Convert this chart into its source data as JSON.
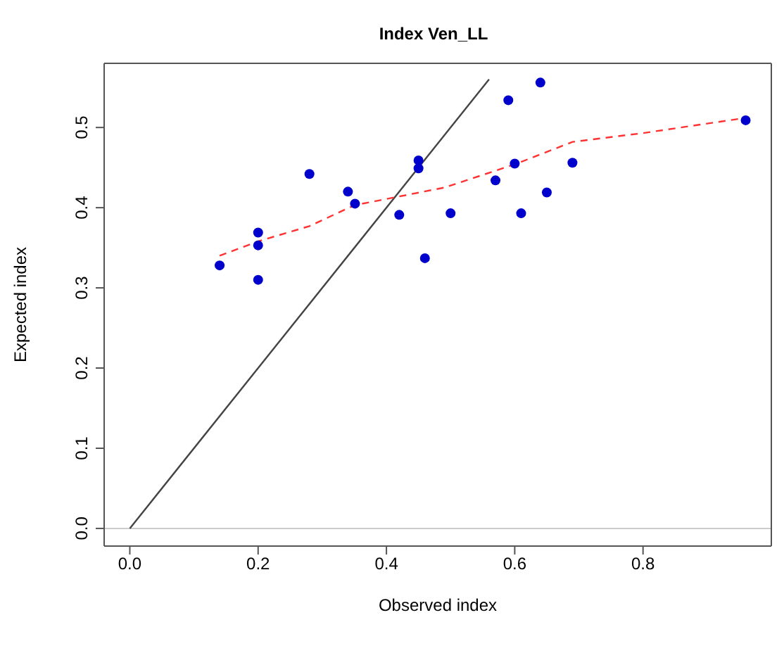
{
  "chart_data": {
    "type": "scatter",
    "title": "Index Ven_LL",
    "xlabel": "Observed index",
    "ylabel": "Expected index",
    "xlim": [
      -0.04,
      1.0
    ],
    "ylim": [
      -0.022,
      0.58
    ],
    "xticks": [
      {
        "value": 0,
        "label": "0.0"
      },
      0.2,
      0.4,
      0.6,
      0.8
    ],
    "yticks": [
      {
        "value": 0,
        "label": "0.0"
      },
      0.1,
      0.2,
      0.3,
      0.4,
      0.5
    ],
    "grid": false,
    "legend": false,
    "marker": "circle",
    "series": [
      {
        "color": "#0000cc",
        "x": [
          0.14,
          0.2,
          0.2,
          0.2,
          0.28,
          0.34,
          0.351,
          0.42,
          0.45,
          0.45,
          0.46,
          0.5,
          0.57,
          0.59,
          0.6,
          0.61,
          0.64,
          0.65,
          0.69,
          0.96
        ],
        "values": [
          0.328,
          0.369,
          0.353,
          0.31,
          0.442,
          0.42,
          0.405,
          0.391,
          0.459,
          0.449,
          0.337,
          0.393,
          0.434,
          0.534,
          0.455,
          0.393,
          0.556,
          0.419,
          0.456,
          0.509
        ]
      },
      {
        "type": "line",
        "color": "#444444",
        "marker": "none",
        "line_style": "solid",
        "x": [
          0,
          0.56
        ],
        "values": [
          0,
          0.56
        ]
      },
      {
        "type": "line",
        "color": "#ff3333",
        "marker": "none",
        "line_style": "dashed",
        "x": [
          0.14,
          0.2,
          0.28,
          0.35,
          0.42,
          0.49,
          0.6,
          0.69,
          0.8,
          0.96
        ],
        "values": [
          0.34,
          0.358,
          0.377,
          0.403,
          0.414,
          0.425,
          0.454,
          0.482,
          0.493,
          0.512
        ]
      }
    ],
    "ref_lines": [
      {
        "axis": "y",
        "value": 0,
        "color": "#cccccc"
      }
    ]
  }
}
